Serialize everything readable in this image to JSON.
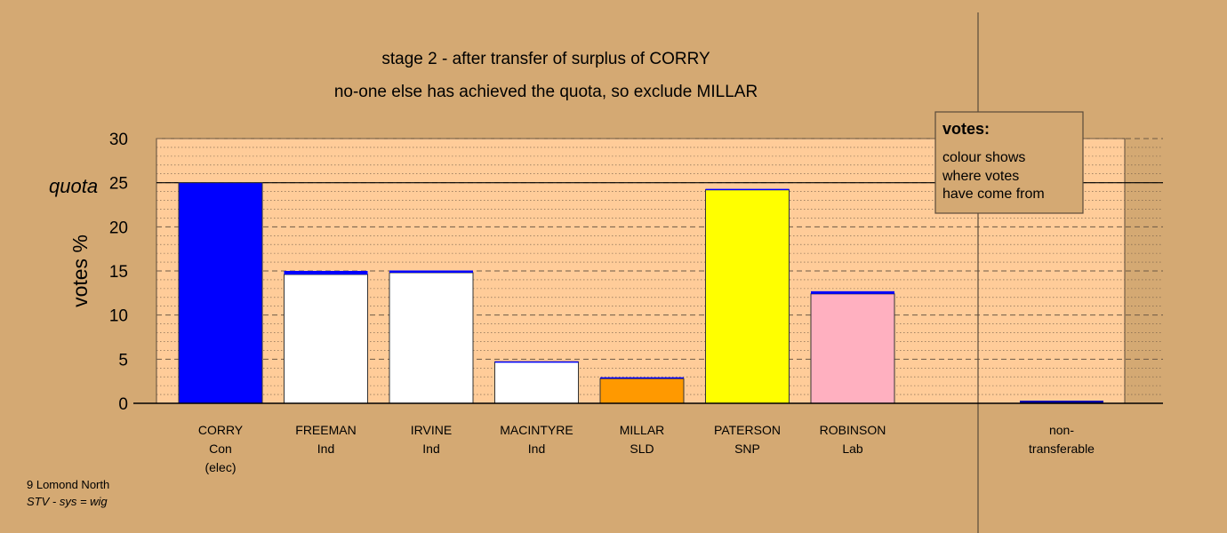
{
  "chart_data": {
    "type": "bar",
    "title": "stage 2 - after transfer of surplus of CORRY",
    "subtitle": "no-one else has achieved the quota, so exclude MILLAR",
    "ylabel": "votes %",
    "ylim": [
      0,
      30
    ],
    "yticks": [
      "0",
      "5",
      "10",
      "15",
      "20",
      "25",
      "30"
    ],
    "quota_label": "quota",
    "quota_value": 25,
    "grid": true,
    "categories": [
      {
        "name": "CORRY",
        "party": "Con",
        "note": "(elec)"
      },
      {
        "name": "FREEMAN",
        "party": "Ind",
        "note": ""
      },
      {
        "name": "IRVINE",
        "party": "Ind",
        "note": ""
      },
      {
        "name": "MACINTYRE",
        "party": "Ind",
        "note": ""
      },
      {
        "name": "MILLAR",
        "party": "SLD",
        "note": ""
      },
      {
        "name": "PATERSON",
        "party": "SNP",
        "note": ""
      },
      {
        "name": "ROBINSON",
        "party": "Lab",
        "note": ""
      }
    ],
    "series": [
      {
        "values": [
          25.0,
          14.6,
          14.8,
          4.7,
          2.8,
          24.2,
          12.4
        ],
        "colors": [
          "#0000ff",
          "#ffffff",
          "#ffffff",
          "#ffffff",
          "#ff9900",
          "#ffff00",
          "#ffb0c0"
        ]
      },
      {
        "values": [
          0,
          0.4,
          0.25,
          0.05,
          0.15,
          0.1,
          0.3
        ],
        "colors": [
          "#0000ff",
          "#0000ff",
          "#0000ff",
          "#0000ff",
          "#0000ff",
          "#0000ff",
          "#0000ff"
        ]
      }
    ],
    "nontransferable": {
      "line1": "non-",
      "line2": "transferable",
      "value": 0.3,
      "color": "#0000aa"
    },
    "legend": {
      "position": "top-right",
      "heading": "votes:",
      "lines": [
        "colour shows",
        "where votes",
        "have come from"
      ]
    }
  },
  "footer": {
    "line1": "9 Lomond North",
    "line2": "STV - sys = wig"
  }
}
